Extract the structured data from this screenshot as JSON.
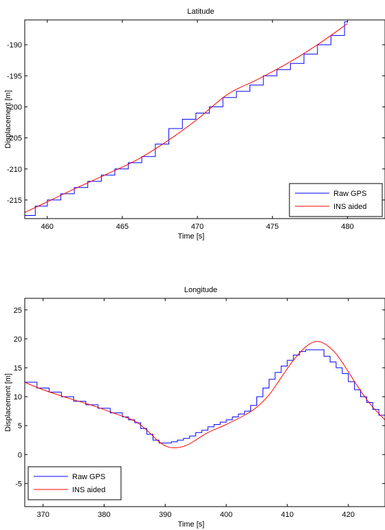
{
  "chart_data": [
    {
      "type": "line",
      "title": "Latitude",
      "xlabel": "Time [s]",
      "ylabel": "Displacement [m]",
      "xlim": [
        458.5,
        482.5
      ],
      "ylim": [
        -218,
        -186
      ],
      "xticks": [
        460,
        465,
        470,
        475,
        480
      ],
      "yticks": [
        -215,
        -210,
        -205,
        -200,
        -195,
        -190
      ],
      "grid": false,
      "legend": "bottom-right",
      "series": [
        {
          "name": "Raw GPS",
          "color": "#0000ff",
          "style": "step",
          "x": [
            458.5,
            459.2,
            460.0,
            460.9,
            461.8,
            462.7,
            463.6,
            464.5,
            465.4,
            466.3,
            467.2,
            468.1,
            469.0,
            469.9,
            470.8,
            471.7,
            472.6,
            473.5,
            474.4,
            475.3,
            476.2,
            477.1,
            478.0,
            478.9,
            479.8,
            480.0
          ],
          "y": [
            -217.5,
            -216.0,
            -215.0,
            -214.0,
            -213.0,
            -212.0,
            -211.0,
            -210.0,
            -209.0,
            -208.0,
            -206.0,
            -203.5,
            -202.0,
            -201.0,
            -200.0,
            -198.5,
            -197.5,
            -196.5,
            -195.0,
            -194.0,
            -193.0,
            -191.5,
            -190.0,
            -188.5,
            -186.3,
            -186.3
          ]
        },
        {
          "name": "INS aided",
          "color": "#ff0000",
          "style": "line",
          "x": [
            458.5,
            460.0,
            462.0,
            464.0,
            466.0,
            468.0,
            470.0,
            472.0,
            474.0,
            476.0,
            478.0,
            480.0
          ],
          "y": [
            -217.0,
            -215.3,
            -213.0,
            -210.8,
            -208.5,
            -205.5,
            -202.0,
            -198.0,
            -195.6,
            -193.0,
            -190.0,
            -186.6
          ]
        }
      ]
    },
    {
      "type": "line",
      "title": "Longitude",
      "xlabel": "Time [s]",
      "ylabel": "Displacement [m]",
      "xlim": [
        367,
        426
      ],
      "ylim": [
        -9,
        27
      ],
      "xticks": [
        370,
        380,
        390,
        400,
        410,
        420
      ],
      "yticks": [
        -5,
        0,
        5,
        10,
        15,
        20,
        25
      ],
      "grid": false,
      "legend": "bottom-left",
      "series": [
        {
          "name": "Raw GPS",
          "color": "#0000ff",
          "style": "step",
          "x": [
            367,
            369,
            371,
            373,
            375,
            377,
            379,
            381,
            383,
            384,
            385,
            386,
            387,
            388,
            389,
            390,
            391,
            392,
            393,
            394,
            395,
            396,
            397,
            398,
            399,
            400,
            401,
            402,
            403,
            404,
            405,
            406,
            407,
            408,
            409,
            410,
            411,
            412,
            413,
            414,
            415,
            416,
            417,
            418,
            419,
            420,
            421,
            422,
            423,
            424,
            425,
            426
          ],
          "y": [
            12.5,
            11.5,
            10.8,
            10.0,
            9.2,
            8.6,
            8.0,
            7.2,
            6.5,
            6.0,
            5.5,
            4.5,
            3.5,
            2.5,
            2.0,
            2.0,
            2.2,
            2.5,
            2.8,
            3.2,
            3.8,
            4.2,
            4.8,
            5.2,
            5.6,
            6.0,
            6.5,
            7.0,
            7.5,
            8.5,
            10.0,
            11.5,
            13.0,
            14.2,
            15.3,
            16.3,
            17.2,
            17.8,
            18.1,
            18.1,
            18.1,
            17.0,
            16.0,
            15.0,
            14.0,
            12.6,
            11.2,
            10.0,
            9.0,
            7.8,
            6.8,
            6.3
          ]
        },
        {
          "name": "INS aided",
          "color": "#ff0000",
          "style": "line",
          "x": [
            367,
            370,
            374,
            378,
            382,
            385,
            387,
            389,
            390.5,
            392,
            393.5,
            395,
            397,
            400,
            403,
            405,
            407,
            409,
            411,
            413,
            414.5,
            416,
            418,
            420,
            422,
            424,
            426
          ],
          "y": [
            12.5,
            11.2,
            9.8,
            8.5,
            7.0,
            5.8,
            4.2,
            2.2,
            1.3,
            1.2,
            1.6,
            2.5,
            3.8,
            5.2,
            6.8,
            8.2,
            10.3,
            13.3,
            16.3,
            18.6,
            19.5,
            19.2,
            17.4,
            14.3,
            11.0,
            8.2,
            6.0
          ]
        }
      ]
    }
  ]
}
